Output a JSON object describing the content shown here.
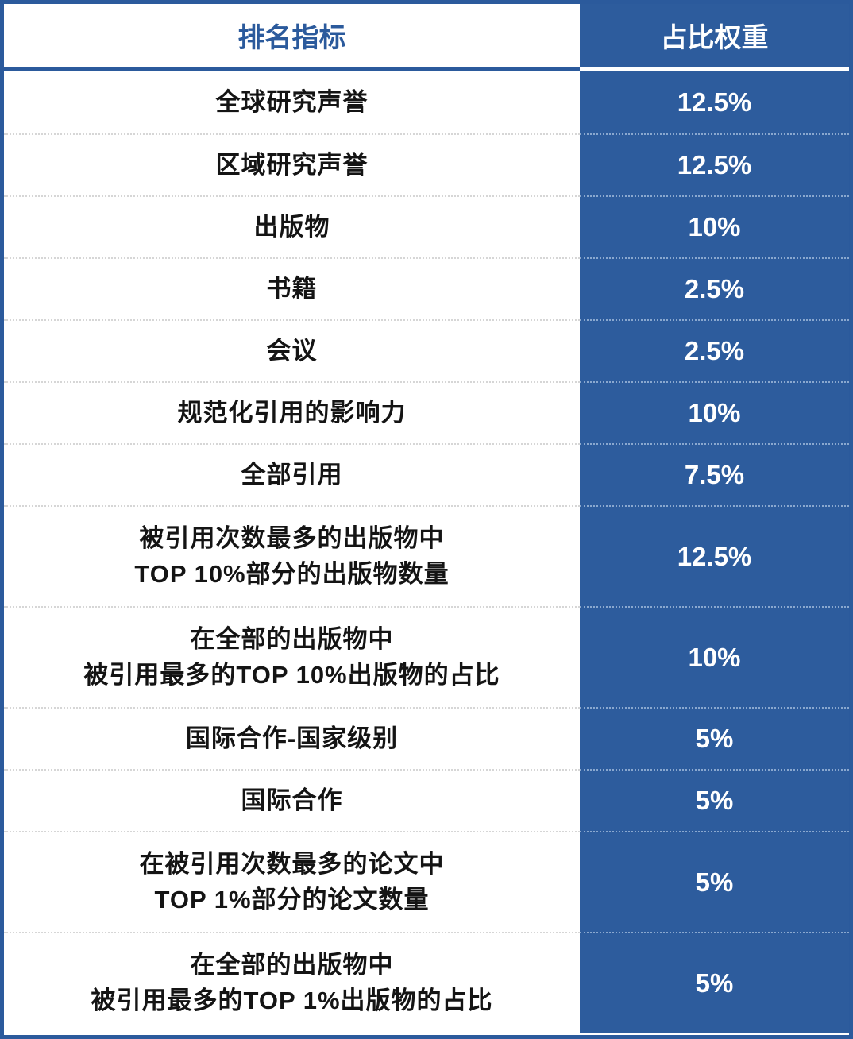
{
  "colors": {
    "accent_blue": "#2D5C9D",
    "border_blue": "#2B5A9C",
    "header_text_blue": "#2B5A9C",
    "body_text": "#141414",
    "weight_text": "#FFFFFF",
    "separator_dotted_light": "#D6D6D6"
  },
  "chart_data": {
    "type": "table",
    "columns": [
      "排名指标",
      "占比权重"
    ],
    "rows": [
      [
        "全球研究声誉",
        "12.5%"
      ],
      [
        "区域研究声誉",
        "12.5%"
      ],
      [
        "出版物",
        "10%"
      ],
      [
        "书籍",
        "2.5%"
      ],
      [
        "会议",
        "2.5%"
      ],
      [
        "规范化引用的影响力",
        "10%"
      ],
      [
        "全部引用",
        "7.5%"
      ],
      [
        "被引用次数最多的出版物中\nTOP 10%部分的出版物数量",
        "12.5%"
      ],
      [
        "在全部的出版物中\n被引用最多的TOP 10%出版物的占比",
        "10%"
      ],
      [
        "国际合作-国家级别",
        "5%"
      ],
      [
        "国际合作",
        "5%"
      ],
      [
        "在被引用次数最多的论文中\nTOP 1%部分的论文数量",
        "5%"
      ],
      [
        "在全部的出版物中\n被引用最多的TOP 1%出版物的占比",
        "5%"
      ]
    ]
  }
}
